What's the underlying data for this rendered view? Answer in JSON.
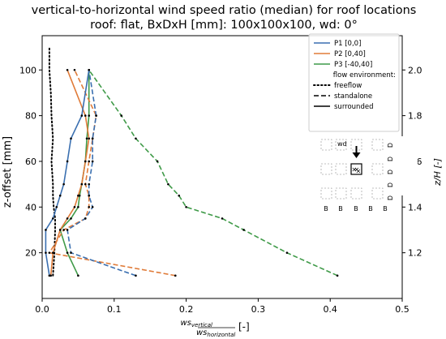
{
  "chart_data": {
    "type": "line",
    "title": "vertical-to-horizontal wind speed ratio (median) for roof locations",
    "subtitle": "roof: flat, BxDxH [mm]: 100x100x100, wd: 0°",
    "xlabel_num": "ws",
    "xlabel_num_sub": "vertical",
    "xlabel_den": "ws",
    "xlabel_den_sub": "horizontal",
    "xlabel_unit": "[-]",
    "ylabel": "z-offset [mm]",
    "ylabel_right": "z/H [-]",
    "xlim": [
      0.0,
      0.5
    ],
    "ylim": [
      0,
      115
    ],
    "xticks": [
      0.0,
      0.1,
      0.2,
      0.3,
      0.4,
      0.5
    ],
    "xtick_labels": [
      "0.0",
      "0.1",
      "0.2",
      "0.3",
      "0.4",
      "0.5"
    ],
    "yticks": [
      20,
      40,
      60,
      80,
      100
    ],
    "ytick_labels": [
      "20",
      "40",
      "60",
      "80",
      "100"
    ],
    "yticks_right": [
      1.2,
      1.4,
      1.6,
      1.8,
      2.0
    ],
    "ytick_labels_right": [
      "1.2",
      "1.4",
      "1.6",
      "1.8",
      "2.0"
    ],
    "grid": false,
    "legend_position": "top-right",
    "legend_section_label": "flow environment:",
    "colors": {
      "P1": "#3a6fb0",
      "P2": "#e07b39",
      "P3": "#3f9a48",
      "freeflow": "#000000"
    },
    "series": [
      {
        "name": "P1 [0,0]",
        "key": "P1",
        "environment": "standalone",
        "style": "dashed",
        "x": [
          0.13,
          0.04,
          0.035,
          0.06,
          0.07,
          0.065,
          0.065,
          0.07,
          0.07,
          0.075,
          0.065
        ],
        "y": [
          10,
          20,
          30,
          35,
          40,
          45,
          50,
          60,
          70,
          80,
          100
        ]
      },
      {
        "name": "P1 [0,0]",
        "key": "P1",
        "environment": "surrounded",
        "style": "solid",
        "x": [
          0.01,
          0.005,
          0.005,
          0.015,
          0.02,
          0.025,
          0.03,
          0.035,
          0.04,
          0.055,
          0.065
        ],
        "y": [
          10,
          20,
          30,
          35,
          40,
          45,
          50,
          60,
          70,
          80,
          100
        ]
      },
      {
        "name": "P2 [0,40]",
        "key": "P2",
        "environment": "standalone",
        "style": "dashed",
        "x": [
          0.185,
          0.01,
          0.03,
          0.06,
          0.065,
          0.065,
          0.06,
          0.065,
          0.07,
          0.075,
          0.045
        ],
        "y": [
          10,
          20,
          30,
          35,
          40,
          45,
          50,
          60,
          70,
          80,
          100
        ]
      },
      {
        "name": "P2 [0,40]",
        "key": "P2",
        "environment": "surrounded",
        "style": "solid",
        "x": [
          0.012,
          0.015,
          0.025,
          0.035,
          0.045,
          0.05,
          0.055,
          0.06,
          0.065,
          0.06,
          0.035
        ],
        "y": [
          10,
          20,
          30,
          35,
          40,
          45,
          50,
          60,
          70,
          80,
          100
        ]
      },
      {
        "name": "P3 [-40,40]",
        "key": "P3",
        "environment": "standalone",
        "style": "dashed",
        "x": [
          0.41,
          0.34,
          0.28,
          0.25,
          0.2,
          0.19,
          0.175,
          0.16,
          0.13,
          0.11,
          0.065
        ],
        "y": [
          10,
          20,
          30,
          35,
          40,
          45,
          50,
          60,
          70,
          80,
          100
        ]
      },
      {
        "name": "P3 [-40,40]",
        "key": "P3",
        "environment": "surrounded",
        "style": "solid",
        "x": [
          0.05,
          0.035,
          0.025,
          0.04,
          0.05,
          0.052,
          0.055,
          0.06,
          0.062,
          0.065,
          0.065
        ],
        "y": [
          10,
          20,
          30,
          35,
          40,
          45,
          50,
          60,
          70,
          80,
          100
        ]
      },
      {
        "name": "freeflow",
        "key": "freeflow",
        "environment": "freeflow",
        "style": "dotted",
        "x": [
          0.015,
          0.017,
          0.018,
          0.018,
          0.016,
          0.015,
          0.015,
          0.013,
          0.015,
          0.013,
          0.012,
          0.01,
          0.01
        ],
        "y": [
          10,
          20,
          30,
          35,
          40,
          45,
          50,
          60,
          70,
          80,
          90,
          100,
          110
        ]
      }
    ],
    "legend": [
      {
        "label": "P1 [0,0]",
        "key": "P1",
        "style": "solid"
      },
      {
        "label": "P2 [0,40]",
        "key": "P2",
        "style": "solid"
      },
      {
        "label": "P3 [-40,40]",
        "key": "P3",
        "style": "solid"
      },
      {
        "label": "freeflow",
        "key": "freeflow",
        "style": "dotted"
      },
      {
        "label": "standalone",
        "key": "freeflow",
        "style": "dashed"
      },
      {
        "label": "surrounded",
        "key": "freeflow",
        "style": "solid"
      }
    ],
    "inset": {
      "label_wd": "wd",
      "label_B": "B",
      "label_D": "D"
    }
  }
}
